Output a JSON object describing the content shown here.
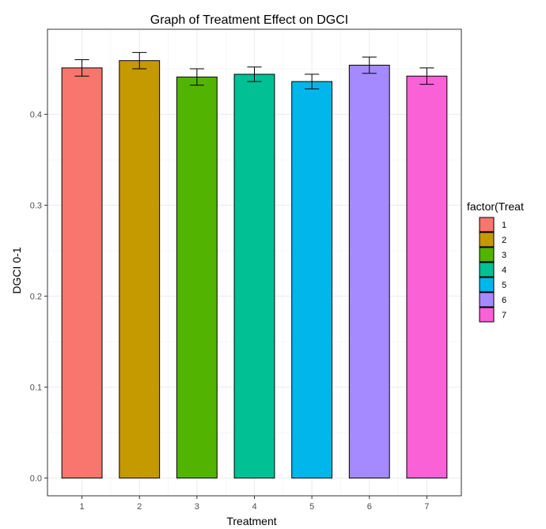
{
  "chart_data": {
    "type": "bar",
    "title": "Graph of Treatment Effect on DGCI",
    "xlabel": "Treatment",
    "ylabel": "DGCI 0-1",
    "categories": [
      "1",
      "2",
      "3",
      "4",
      "5",
      "6",
      "7"
    ],
    "values": [
      0.451,
      0.459,
      0.441,
      0.444,
      0.436,
      0.454,
      0.442
    ],
    "error": [
      0.009,
      0.009,
      0.009,
      0.008,
      0.008,
      0.009,
      0.009
    ],
    "colors": [
      "#F8766D",
      "#C49A00",
      "#53B400",
      "#00C094",
      "#00B6EB",
      "#A58AFF",
      "#FB61D7"
    ],
    "ylim": [
      -0.0195,
      0.4935
    ],
    "yticks": [
      0.0,
      0.1,
      0.2,
      0.3,
      0.4
    ],
    "ytick_labels": [
      "0.0",
      "0.1",
      "0.2",
      "0.3",
      "0.4"
    ],
    "grid": true,
    "legend": {
      "title": "factor(Treat",
      "position": "right",
      "items": [
        "1",
        "2",
        "3",
        "4",
        "5",
        "6",
        "7"
      ]
    }
  }
}
